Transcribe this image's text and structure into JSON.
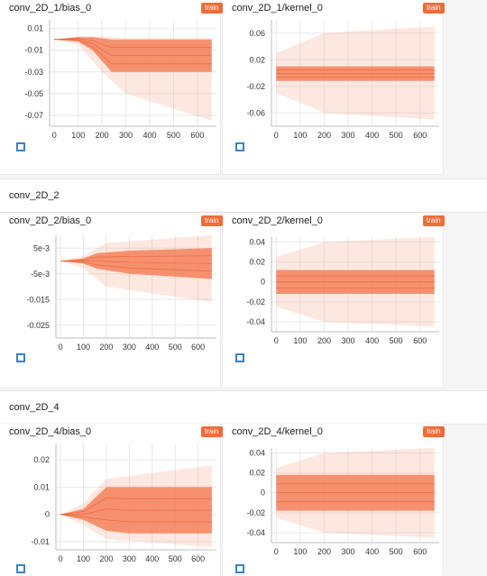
{
  "colors": {
    "accent": "#f26b3a",
    "band": "#f5815a",
    "icon": "#3b82c4"
  },
  "groups": [
    {
      "title": "conv_2D_2"
    },
    {
      "title": "conv_2D_4"
    }
  ],
  "cards": [
    {
      "title": "conv_2D_1/bias_0",
      "badge": "train"
    },
    {
      "title": "conv_2D_1/kernel_0",
      "badge": "train"
    },
    {
      "title": "conv_2D_2/bias_0",
      "badge": "train"
    },
    {
      "title": "conv_2D_2/kernel_0",
      "badge": "train"
    },
    {
      "title": "conv_2D_4/bias_0",
      "badge": "train"
    },
    {
      "title": "conv_2D_4/kernel_0",
      "badge": "train"
    }
  ],
  "chart_data": [
    {
      "type": "area",
      "title": "conv_2D_1/bias_0",
      "xticks": [
        0,
        100,
        200,
        300,
        400,
        500,
        600
      ],
      "yticks": [
        "0.01",
        "-0.01",
        "-0.03",
        "-0.05",
        "-0.07"
      ],
      "yvals": [
        0.01,
        -0.01,
        -0.03,
        -0.05,
        -0.07
      ],
      "xlim": [
        -20,
        680
      ],
      "ylim": [
        -0.08,
        0.018
      ],
      "bands": [
        {
          "x": [
            0,
            100,
            160,
            240,
            660
          ],
          "lo": [
            0,
            -0.002,
            -0.01,
            -0.03,
            -0.03
          ],
          "hi": [
            0,
            0.002,
            0.002,
            0.0,
            0.0
          ]
        },
        {
          "x": [
            0,
            100,
            200,
            300,
            660
          ],
          "lo": [
            0,
            -0.005,
            -0.03,
            -0.05,
            -0.075
          ],
          "hi": [
            0,
            0.003,
            0.003,
            0.001,
            0.001
          ]
        }
      ]
    },
    {
      "type": "area",
      "title": "conv_2D_1/kernel_0",
      "xticks": [
        0,
        100,
        200,
        300,
        400,
        500,
        600
      ],
      "yticks": [
        "0.06",
        "0.02",
        "-0.02",
        "-0.06"
      ],
      "yvals": [
        0.06,
        0.02,
        -0.02,
        -0.06
      ],
      "xlim": [
        -20,
        680
      ],
      "ylim": [
        -0.08,
        0.08
      ],
      "bands": [
        {
          "x": [
            0,
            660
          ],
          "lo": [
            -0.012,
            -0.012
          ],
          "hi": [
            0.01,
            0.01
          ]
        },
        {
          "x": [
            0,
            200,
            660
          ],
          "lo": [
            -0.03,
            -0.06,
            -0.07
          ],
          "hi": [
            0.03,
            0.06,
            0.07
          ]
        }
      ]
    },
    {
      "type": "area",
      "title": "conv_2D_2/bias_0",
      "xticks": [
        0,
        100,
        200,
        300,
        400,
        500,
        600
      ],
      "yticks": [
        "5e-3",
        "-5e-3",
        "-0.015",
        "-0.025"
      ],
      "yvals": [
        0.005,
        -0.005,
        -0.015,
        -0.025
      ],
      "xlim": [
        -20,
        680
      ],
      "ylim": [
        -0.03,
        0.01
      ],
      "bands": [
        {
          "x": [
            0,
            100,
            160,
            300,
            660
          ],
          "lo": [
            0,
            -0.001,
            -0.003,
            -0.005,
            -0.007
          ],
          "hi": [
            0,
            0.001,
            0.003,
            0.004,
            0.005
          ]
        },
        {
          "x": [
            0,
            100,
            200,
            660
          ],
          "lo": [
            0,
            -0.003,
            -0.01,
            -0.016
          ],
          "hi": [
            0,
            0.002,
            0.007,
            0.01
          ]
        }
      ]
    },
    {
      "type": "area",
      "title": "conv_2D_2/kernel_0",
      "xticks": [
        0,
        100,
        200,
        300,
        400,
        500,
        600
      ],
      "yticks": [
        "0.04",
        "0.02",
        "0",
        "-0.02",
        "-0.04"
      ],
      "yvals": [
        0.04,
        0.02,
        0,
        -0.02,
        -0.04
      ],
      "xlim": [
        -20,
        680
      ],
      "ylim": [
        -0.05,
        0.045
      ],
      "bands": [
        {
          "x": [
            0,
            660
          ],
          "lo": [
            -0.012,
            -0.012
          ],
          "hi": [
            0.012,
            0.012
          ]
        },
        {
          "x": [
            0,
            200,
            660
          ],
          "lo": [
            -0.025,
            -0.04,
            -0.045
          ],
          "hi": [
            0.025,
            0.04,
            0.045
          ]
        }
      ]
    },
    {
      "type": "area",
      "title": "conv_2D_4/bias_0",
      "xticks": [
        0,
        100,
        200,
        300,
        400,
        500,
        600
      ],
      "yticks": [
        "0.02",
        "0.01",
        "0",
        "-0.01"
      ],
      "yvals": [
        0.02,
        0.01,
        0,
        -0.01
      ],
      "xlim": [
        -20,
        680
      ],
      "ylim": [
        -0.013,
        0.026
      ],
      "bands": [
        {
          "x": [
            0,
            100,
            200,
            300,
            660
          ],
          "lo": [
            0,
            -0.002,
            -0.006,
            -0.007,
            -0.007
          ],
          "hi": [
            0,
            0.002,
            0.01,
            0.01,
            0.01
          ]
        },
        {
          "x": [
            0,
            100,
            200,
            660
          ],
          "lo": [
            0,
            -0.004,
            -0.009,
            -0.012
          ],
          "hi": [
            0,
            0.004,
            0.013,
            0.018
          ]
        }
      ]
    },
    {
      "type": "area",
      "title": "conv_2D_4/kernel_0",
      "xticks": [
        0,
        100,
        200,
        300,
        400,
        500,
        600
      ],
      "yticks": [
        "0.04",
        "0.02",
        "0",
        "-0.02",
        "-0.04"
      ],
      "yvals": [
        0.04,
        0.02,
        0,
        -0.02,
        -0.04
      ],
      "xlim": [
        -20,
        680
      ],
      "ylim": [
        -0.05,
        0.045
      ],
      "bands": [
        {
          "x": [
            0,
            660
          ],
          "lo": [
            -0.018,
            -0.018
          ],
          "hi": [
            0.018,
            0.018
          ]
        },
        {
          "x": [
            0,
            200,
            660
          ],
          "lo": [
            -0.025,
            -0.04,
            -0.045
          ],
          "hi": [
            0.025,
            0.04,
            0.045
          ]
        }
      ]
    }
  ]
}
